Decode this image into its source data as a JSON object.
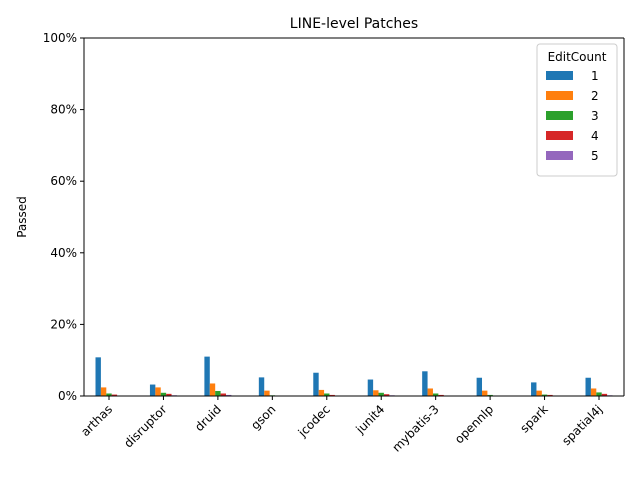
{
  "chart_data": {
    "type": "bar",
    "title": "LINE-level Patches",
    "xlabel": "",
    "ylabel": "Passed",
    "ylim": [
      0,
      100
    ],
    "y_tick_values": [
      0,
      20,
      40,
      60,
      80,
      100
    ],
    "y_tick_labels": [
      "0%",
      "20%",
      "40%",
      "60%",
      "80%",
      "100%"
    ],
    "categories": [
      "arthas",
      "disruptor",
      "druid",
      "gson",
      "jcodec",
      "junit4",
      "mybatis-3",
      "opennlp",
      "spark",
      "spatial4j"
    ],
    "legend_title": "EditCount",
    "legend_position": "top-right",
    "grid": false,
    "series": [
      {
        "name": "1",
        "color": "#1f77b4",
        "values": [
          10.8,
          3.2,
          11.0,
          5.2,
          6.5,
          4.6,
          6.9,
          5.1,
          3.8,
          5.1
        ]
      },
      {
        "name": "2",
        "color": "#ff7f0e",
        "values": [
          2.4,
          2.4,
          3.5,
          1.5,
          1.7,
          1.6,
          2.1,
          1.5,
          1.5,
          2.1
        ]
      },
      {
        "name": "3",
        "color": "#2ca02c",
        "values": [
          0.7,
          0.9,
          1.4,
          0.2,
          0.7,
          0.9,
          0.7,
          0.3,
          0.4,
          1.0
        ]
      },
      {
        "name": "4",
        "color": "#d62728",
        "values": [
          0.4,
          0.6,
          0.7,
          0.1,
          0.3,
          0.5,
          0.3,
          0.1,
          0.3,
          0.6
        ]
      },
      {
        "name": "5",
        "color": "#9467bd",
        "values": [
          0.1,
          0.2,
          0.3,
          0.0,
          0.1,
          0.2,
          0.1,
          0.0,
          0.1,
          0.2
        ]
      }
    ]
  }
}
